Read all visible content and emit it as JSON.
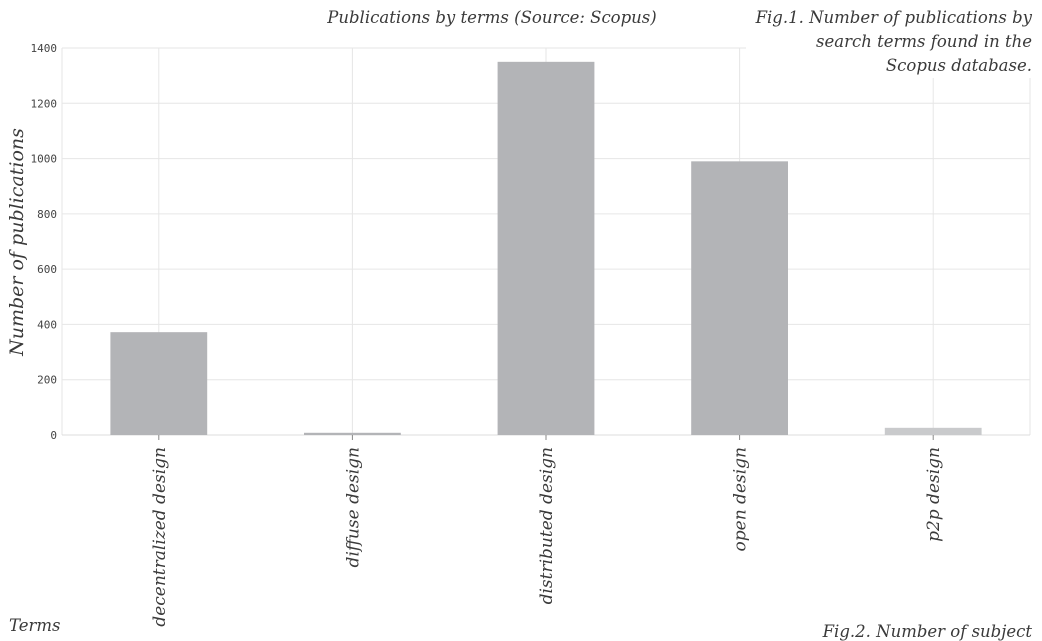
{
  "chart_data": {
    "type": "bar",
    "title": "Publications by terms (Source: Scopus)",
    "xlabel": "Terms",
    "ylabel": "Number of publications",
    "categories": [
      "decentralized design",
      "diffuse design",
      "distributed design",
      "open design",
      "p2p design"
    ],
    "values": [
      372,
      8,
      1350,
      990,
      26
    ],
    "ylim": [
      0,
      1400
    ],
    "yticks": [
      0,
      200,
      400,
      600,
      800,
      1000,
      1200,
      1400
    ],
    "grid": true,
    "colors": [
      "#b3b4b7",
      "#b3b4b7",
      "#b3b4b7",
      "#b3b4b7",
      "#c9cacc"
    ]
  },
  "captions": {
    "fig1": "Fig.1. Number of publications by search terms found in the Scopus database.",
    "fig2": "Fig.2. Number of subject"
  }
}
